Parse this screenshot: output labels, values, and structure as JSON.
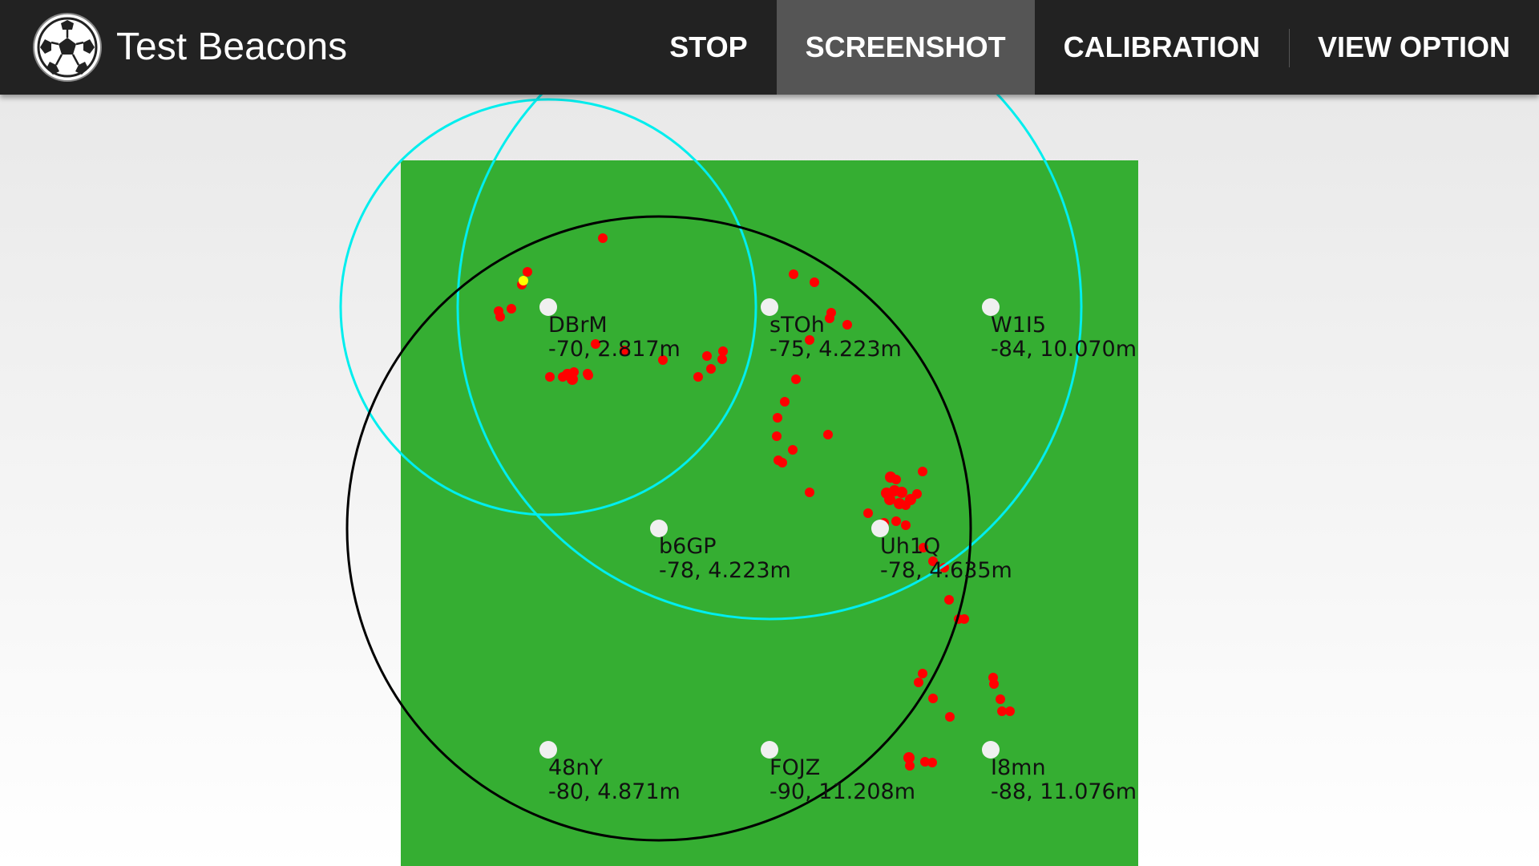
{
  "app": {
    "title": "Test Beacons",
    "icon": "soccer-ball-icon"
  },
  "actions": [
    {
      "label": "STOP",
      "pressed": false
    },
    {
      "label": "SCREENSHOT",
      "pressed": true
    },
    {
      "label": "CALIBRATION",
      "pressed": false
    },
    {
      "label": "VIEW OPTION",
      "pressed": false
    }
  ],
  "colors": {
    "actionbar": "#222222",
    "field": "#35ae32",
    "beacon": "#f0f0f0",
    "range_circle": "#00eeee",
    "nearest_circle": "#000000",
    "sample_point": "#ff0000",
    "estimate_point": "#ffff00"
  },
  "beacons": [
    {
      "id": "DBrM",
      "rssi": -70,
      "distance": "2.817m",
      "stats": "-70, 2.817m"
    },
    {
      "id": "sTOh",
      "rssi": -75,
      "distance": "4.223m",
      "stats": "-75, 4.223m"
    },
    {
      "id": "W1I5",
      "rssi": -84,
      "distance": "10.070m",
      "stats": "-84, 10.070m"
    },
    {
      "id": "b6GP",
      "rssi": -78,
      "distance": "4.223m",
      "stats": "-78, 4.223m"
    },
    {
      "id": "Uh1Q",
      "rssi": -78,
      "distance": "4.635m",
      "stats": "-78, 4.635m"
    },
    {
      "id": "48nY",
      "rssi": -80,
      "distance": "4.871m",
      "stats": "-80, 4.871m"
    },
    {
      "id": "FOJZ",
      "rssi": -90,
      "distance": "11.208m",
      "stats": "-90, 11.208m"
    },
    {
      "id": "I8mn",
      "rssi": -88,
      "distance": "11.076m",
      "stats": "-88, 11.076m"
    }
  ]
}
